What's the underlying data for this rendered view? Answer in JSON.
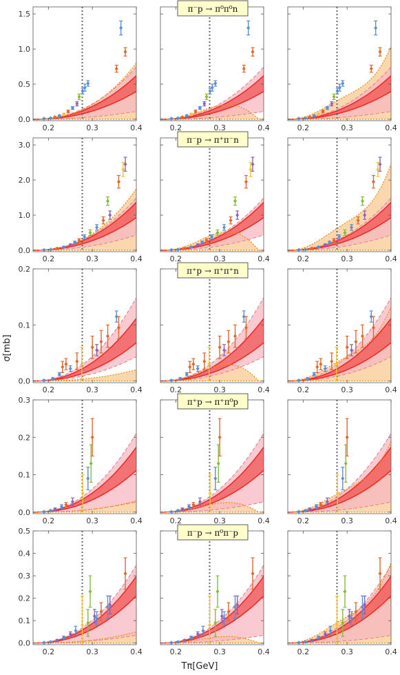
{
  "figure": {
    "ylabel": "σ[mb]",
    "xlabel": "Tπ[GeV]"
  },
  "colors": {
    "band_pink": "#f7b8bf",
    "band_red": "#ee2b2b",
    "band_orange": "#fbd3a4",
    "dashed_pink": "#e8828f",
    "dotted_orange": "#f28c1a",
    "vline": "#666666",
    "blue": "#5b8fd1",
    "orange": "#e0672d",
    "green": "#86bb3a",
    "purple": "#8a64b7",
    "yellow": "#f5c232",
    "label_bg": "#ffffcc"
  },
  "chart_data": [
    {
      "type": "line",
      "process": "π⁻p → π⁰π⁰n",
      "xlim": [
        0.165,
        0.4
      ],
      "ylim": [
        -0.02,
        1.6
      ],
      "xticks": [
        "0.2",
        "0.3",
        "0.4"
      ],
      "yticks": [
        "0.0",
        "0.5",
        "1.0",
        "1.5"
      ],
      "threshold_x": 0.277,
      "data_points": [
        {
          "x": 0.19,
          "y": 0.01,
          "err": 0.005,
          "color": "blue"
        },
        {
          "x": 0.205,
          "y": 0.015,
          "err": 0.006,
          "color": "blue"
        },
        {
          "x": 0.215,
          "y": 0.03,
          "err": 0.008,
          "color": "orange"
        },
        {
          "x": 0.225,
          "y": 0.05,
          "err": 0.01,
          "color": "blue"
        },
        {
          "x": 0.235,
          "y": 0.07,
          "err": 0.015,
          "color": "yellow"
        },
        {
          "x": 0.245,
          "y": 0.11,
          "err": 0.02,
          "color": "orange"
        },
        {
          "x": 0.255,
          "y": 0.16,
          "err": 0.02,
          "color": "blue"
        },
        {
          "x": 0.265,
          "y": 0.22,
          "err": 0.03,
          "color": "purple"
        },
        {
          "x": 0.27,
          "y": 0.32,
          "err": 0.04,
          "color": "green"
        },
        {
          "x": 0.278,
          "y": 0.4,
          "err": 0.04,
          "color": "blue"
        },
        {
          "x": 0.283,
          "y": 0.45,
          "err": 0.05,
          "color": "blue"
        },
        {
          "x": 0.29,
          "y": 0.51,
          "err": 0.04,
          "color": "blue"
        },
        {
          "x": 0.355,
          "y": 0.72,
          "err": 0.05,
          "color": "orange"
        },
        {
          "x": 0.365,
          "y": 1.3,
          "err": 0.1,
          "color": "blue"
        },
        {
          "x": 0.375,
          "y": 0.96,
          "err": 0.06,
          "color": "orange"
        }
      ],
      "panels": [
        {
          "red_hi": [
            0.02,
            5.0
          ],
          "red_lo": [
            0.01,
            3.2
          ],
          "pink_hi": [
            0.025,
            6.0
          ],
          "pink_lo": [
            0.005,
            0.9
          ],
          "orange_peak": 0.8
        },
        {
          "red_hi": [
            0.02,
            5.0
          ],
          "red_lo": [
            0.01,
            3.2
          ],
          "pink_hi": [
            0.025,
            6.0
          ],
          "pink_lo": [
            0.005,
            0.9
          ],
          "orange_peak": 0.28
        },
        {
          "red_hi": [
            0.02,
            5.0
          ],
          "red_lo": [
            0.01,
            3.2
          ],
          "pink_hi": [
            0.025,
            6.0
          ],
          "pink_lo": [
            0.005,
            0.9
          ],
          "orange_peak": 1.1
        }
      ]
    },
    {
      "type": "line",
      "process": "π⁻p → π⁺π⁻n",
      "xlim": [
        0.165,
        0.4
      ],
      "ylim": [
        -0.04,
        3.2
      ],
      "xticks": [
        "0.2",
        "0.3",
        "0.4"
      ],
      "yticks": [
        "0.0",
        "1.0",
        "2.0",
        "3.0"
      ],
      "threshold_x": 0.277,
      "data_points": [
        {
          "x": 0.19,
          "y": 0.01,
          "err": 0.01,
          "color": "blue"
        },
        {
          "x": 0.205,
          "y": 0.02,
          "err": 0.01,
          "color": "blue"
        },
        {
          "x": 0.22,
          "y": 0.05,
          "err": 0.02,
          "color": "orange"
        },
        {
          "x": 0.235,
          "y": 0.09,
          "err": 0.02,
          "color": "blue"
        },
        {
          "x": 0.25,
          "y": 0.15,
          "err": 0.03,
          "color": "purple"
        },
        {
          "x": 0.26,
          "y": 0.22,
          "err": 0.04,
          "color": "blue"
        },
        {
          "x": 0.27,
          "y": 0.28,
          "err": 0.05,
          "color": "orange"
        },
        {
          "x": 0.282,
          "y": 0.38,
          "err": 0.06,
          "color": "blue"
        },
        {
          "x": 0.295,
          "y": 0.5,
          "err": 0.08,
          "color": "green"
        },
        {
          "x": 0.31,
          "y": 0.65,
          "err": 0.08,
          "color": "blue"
        },
        {
          "x": 0.325,
          "y": 0.85,
          "err": 0.1,
          "color": "orange"
        },
        {
          "x": 0.335,
          "y": 1.4,
          "err": 0.12,
          "color": "green"
        },
        {
          "x": 0.34,
          "y": 1.0,
          "err": 0.12,
          "color": "purple"
        },
        {
          "x": 0.36,
          "y": 1.95,
          "err": 0.18,
          "color": "orange"
        },
        {
          "x": 0.37,
          "y": 2.3,
          "err": 0.2,
          "color": "yellow"
        },
        {
          "x": 0.375,
          "y": 2.45,
          "err": 0.2,
          "color": "purple"
        }
      ],
      "panels": [
        {
          "red_hi": [
            0.04,
            11.0
          ],
          "red_lo": [
            0.02,
            7.5
          ],
          "pink_hi": [
            0.05,
            12.0
          ],
          "pink_lo": [
            0.02,
            3.5
          ],
          "orange_peak": 1.75
        },
        {
          "red_hi": [
            0.04,
            11.0
          ],
          "red_lo": [
            0.02,
            7.5
          ],
          "pink_hi": [
            0.05,
            12.0
          ],
          "pink_lo": [
            0.02,
            3.5
          ],
          "orange_peak": 0.72
        },
        {
          "red_hi": [
            0.04,
            11.0
          ],
          "red_lo": [
            0.02,
            7.5
          ],
          "pink_hi": [
            0.05,
            12.0
          ],
          "pink_lo": [
            0.02,
            3.5
          ],
          "orange_peak": 2.6
        }
      ]
    },
    {
      "type": "line",
      "process": "π⁺p → π⁺π⁺n",
      "xlim": [
        0.165,
        0.4
      ],
      "ylim": [
        -0.003,
        0.2
      ],
      "xticks": [
        "0.2",
        "0.3",
        "0.4"
      ],
      "yticks": [
        "0.0",
        "0.1",
        "0.2"
      ],
      "threshold_x": 0.277,
      "data_points": [
        {
          "x": 0.19,
          "y": 0.001,
          "err": 0.001,
          "color": "blue"
        },
        {
          "x": 0.21,
          "y": 0.004,
          "err": 0.002,
          "color": "blue"
        },
        {
          "x": 0.225,
          "y": 0.012,
          "err": 0.003,
          "color": "blue"
        },
        {
          "x": 0.232,
          "y": 0.025,
          "err": 0.01,
          "color": "orange"
        },
        {
          "x": 0.24,
          "y": 0.03,
          "err": 0.01,
          "color": "orange"
        },
        {
          "x": 0.25,
          "y": 0.022,
          "err": 0.005,
          "color": "blue"
        },
        {
          "x": 0.265,
          "y": 0.035,
          "err": 0.015,
          "color": "orange"
        },
        {
          "x": 0.276,
          "y": 0.03,
          "err": 0.03,
          "color": "yellow"
        },
        {
          "x": 0.3,
          "y": 0.06,
          "err": 0.02,
          "color": "orange"
        },
        {
          "x": 0.31,
          "y": 0.055,
          "err": 0.01,
          "color": "purple"
        },
        {
          "x": 0.32,
          "y": 0.07,
          "err": 0.02,
          "color": "orange"
        },
        {
          "x": 0.335,
          "y": 0.08,
          "err": 0.02,
          "color": "orange"
        },
        {
          "x": 0.355,
          "y": 0.115,
          "err": 0.01,
          "color": "blue"
        },
        {
          "x": 0.36,
          "y": 0.095,
          "err": 0.02,
          "color": "orange"
        }
      ],
      "panels": [
        {
          "red_hi": [
            0.002,
            0.9
          ],
          "red_lo": [
            0.001,
            0.55
          ],
          "pink_hi": [
            0.003,
            1.2
          ],
          "pink_lo": [
            0.001,
            0.35
          ],
          "orange_peak": 0.02
        },
        {
          "red_hi": [
            0.002,
            0.9
          ],
          "red_lo": [
            0.001,
            0.55
          ],
          "pink_hi": [
            0.003,
            1.2
          ],
          "pink_lo": [
            0.001,
            0.35
          ],
          "orange_peak": 0.04
        },
        {
          "red_hi": [
            0.002,
            0.9
          ],
          "red_lo": [
            0.001,
            0.55
          ],
          "pink_hi": [
            0.003,
            1.2
          ],
          "pink_lo": [
            0.001,
            0.35
          ],
          "orange_peak": 0.14
        }
      ]
    },
    {
      "type": "line",
      "process": "π⁺p → π⁺π⁰p",
      "xlim": [
        0.165,
        0.4
      ],
      "ylim": [
        -0.004,
        0.3
      ],
      "xticks": [
        "0.2",
        "0.3",
        "0.4"
      ],
      "yticks": [
        "0.0",
        "0.1",
        "0.2",
        "0.3"
      ],
      "threshold_x": 0.277,
      "data_points": [
        {
          "x": 0.19,
          "y": 0.001,
          "err": 0.001,
          "color": "blue"
        },
        {
          "x": 0.205,
          "y": 0.004,
          "err": 0.002,
          "color": "blue"
        },
        {
          "x": 0.215,
          "y": 0.008,
          "err": 0.003,
          "color": "purple"
        },
        {
          "x": 0.23,
          "y": 0.015,
          "err": 0.005,
          "color": "blue"
        },
        {
          "x": 0.24,
          "y": 0.02,
          "err": 0.006,
          "color": "orange"
        },
        {
          "x": 0.255,
          "y": 0.028,
          "err": 0.01,
          "color": "purple"
        },
        {
          "x": 0.278,
          "y": 0.05,
          "err": 0.05,
          "color": "yellow"
        },
        {
          "x": 0.29,
          "y": 0.09,
          "err": 0.03,
          "color": "blue"
        },
        {
          "x": 0.297,
          "y": 0.13,
          "err": 0.05,
          "color": "green"
        },
        {
          "x": 0.3,
          "y": 0.2,
          "err": 0.05,
          "color": "orange"
        }
      ],
      "panels": [
        {
          "red_hi": [
            0.003,
            1.4
          ],
          "red_lo": [
            0.001,
            0.9
          ],
          "pink_hi": [
            0.004,
            1.7
          ],
          "pink_lo": [
            0.001,
            0.22
          ],
          "orange_peak": 0.03
        },
        {
          "red_hi": [
            0.003,
            1.4
          ],
          "red_lo": [
            0.001,
            0.9
          ],
          "pink_hi": [
            0.004,
            1.7
          ],
          "pink_lo": [
            0.001,
            0.22
          ],
          "orange_peak": 0.035
        },
        {
          "red_hi": [
            0.003,
            1.4
          ],
          "red_lo": [
            0.001,
            0.9
          ],
          "pink_hi": [
            0.004,
            1.7
          ],
          "pink_lo": [
            0.001,
            0.22
          ],
          "orange_peak": 0.2
        }
      ]
    },
    {
      "type": "line",
      "process": "π⁻p → π⁰π⁻p",
      "xlim": [
        0.165,
        0.4
      ],
      "ylim": [
        -0.007,
        0.5
      ],
      "xticks": [
        "0.2",
        "0.3",
        "0.4"
      ],
      "yticks": [
        "0.0",
        "0.1",
        "0.2",
        "0.3",
        "0.4",
        "0.5"
      ],
      "threshold_x": 0.277,
      "data_points": [
        {
          "x": 0.19,
          "y": 0.002,
          "err": 0.002,
          "color": "blue"
        },
        {
          "x": 0.205,
          "y": 0.005,
          "err": 0.003,
          "color": "blue"
        },
        {
          "x": 0.22,
          "y": 0.012,
          "err": 0.004,
          "color": "purple"
        },
        {
          "x": 0.235,
          "y": 0.025,
          "err": 0.006,
          "color": "blue"
        },
        {
          "x": 0.25,
          "y": 0.04,
          "err": 0.01,
          "color": "purple"
        },
        {
          "x": 0.262,
          "y": 0.055,
          "err": 0.02,
          "color": "blue"
        },
        {
          "x": 0.277,
          "y": 0.08,
          "err": 0.13,
          "color": "yellow"
        },
        {
          "x": 0.29,
          "y": 0.09,
          "err": 0.06,
          "color": "green"
        },
        {
          "x": 0.295,
          "y": 0.23,
          "err": 0.07,
          "color": "green"
        },
        {
          "x": 0.305,
          "y": 0.12,
          "err": 0.03,
          "color": "purple"
        },
        {
          "x": 0.31,
          "y": 0.11,
          "err": 0.03,
          "color": "blue"
        },
        {
          "x": 0.32,
          "y": 0.14,
          "err": 0.04,
          "color": "orange"
        },
        {
          "x": 0.335,
          "y": 0.16,
          "err": 0.05,
          "color": "blue"
        },
        {
          "x": 0.34,
          "y": 0.17,
          "err": 0.04,
          "color": "purple"
        },
        {
          "x": 0.375,
          "y": 0.31,
          "err": 0.07,
          "color": "orange"
        }
      ],
      "panels": [
        {
          "red_hi": [
            0.005,
            2.4
          ],
          "red_lo": [
            0.002,
            1.7
          ],
          "pink_hi": [
            0.006,
            2.8
          ],
          "pink_lo": [
            0.002,
            0.28
          ],
          "orange_peak": 0.05
        },
        {
          "red_hi": [
            0.005,
            2.4
          ],
          "red_lo": [
            0.002,
            1.7
          ],
          "pink_hi": [
            0.006,
            2.8
          ],
          "pink_lo": [
            0.002,
            0.28
          ],
          "orange_peak": 0.04
        },
        {
          "red_hi": [
            0.005,
            2.4
          ],
          "red_lo": [
            0.002,
            1.7
          ],
          "pink_hi": [
            0.006,
            2.8
          ],
          "pink_lo": [
            0.002,
            0.28
          ],
          "orange_peak": 0.38
        }
      ]
    }
  ]
}
